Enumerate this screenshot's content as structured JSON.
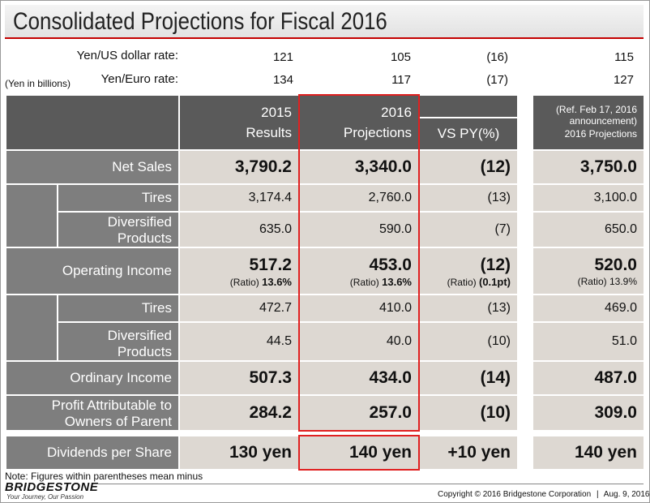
{
  "title": "Consolidated Projections for Fiscal 2016",
  "unit_note": "(Yen in billions)",
  "rates": [
    {
      "label": "Yen/US dollar rate:",
      "values": [
        "121",
        "105",
        "(16)",
        "115"
      ]
    },
    {
      "label": "Yen/Euro rate:",
      "values": [
        "134",
        "117",
        "(17)",
        "127"
      ]
    }
  ],
  "headers": {
    "col1": [
      "2015",
      "Results"
    ],
    "col2": [
      "2016",
      "Projections"
    ],
    "col3": "VS PY(%)",
    "col4": [
      "(Ref.  Feb 17, 2016",
      "announcement)",
      "2016 Projections"
    ]
  },
  "rows": {
    "net_sales": {
      "label": "Net Sales",
      "values": [
        "3,790.2",
        "3,340.0",
        "(12)",
        "3,750.0"
      ]
    },
    "ns_tires": {
      "label": "Tires",
      "values": [
        "3,174.4",
        "2,760.0",
        "(13)",
        "3,100.0"
      ]
    },
    "ns_div": {
      "label": [
        "Diversified",
        "Products"
      ],
      "values": [
        "635.0",
        "590.0",
        "(7)",
        "650.0"
      ]
    },
    "op_income": {
      "label": "Operating Income",
      "values": [
        "517.2",
        "453.0",
        "(12)",
        "520.0"
      ],
      "ratio_label": "(Ratio)",
      "ratios": [
        "13.6%",
        "13.6%",
        "(0.1pt)",
        "13.9%"
      ]
    },
    "oi_tires": {
      "label": "Tires",
      "values": [
        "472.7",
        "410.0",
        "(13)",
        "469.0"
      ]
    },
    "oi_div": {
      "label": [
        "Diversified",
        "Products"
      ],
      "values": [
        "44.5",
        "40.0",
        "(10)",
        "51.0"
      ]
    },
    "ordinary": {
      "label": "Ordinary Income",
      "values": [
        "507.3",
        "434.0",
        "(14)",
        "487.0"
      ]
    },
    "profit": {
      "label": [
        "Profit Attributable to",
        "Owners of Parent"
      ],
      "values": [
        "284.2",
        "257.0",
        "(10)",
        "309.0"
      ]
    },
    "dividends": {
      "label": "Dividends per Share",
      "values": [
        "130 yen",
        "140 yen",
        "+10 yen",
        "140 yen"
      ]
    }
  },
  "note": "Note: Figures within parentheses mean minus",
  "brand": {
    "name": "BRIDGESTONE",
    "tagline": "Your Journey, Our Passion"
  },
  "copyright": "Copyright © 2016 Bridgestone Corporation",
  "date": "Aug. 9, 2016",
  "colors": {
    "accent": "#c40000",
    "highlight": "#e02020",
    "header": "#5a5a5a",
    "label": "#7e7e7e",
    "value": "#ddd8d2"
  }
}
